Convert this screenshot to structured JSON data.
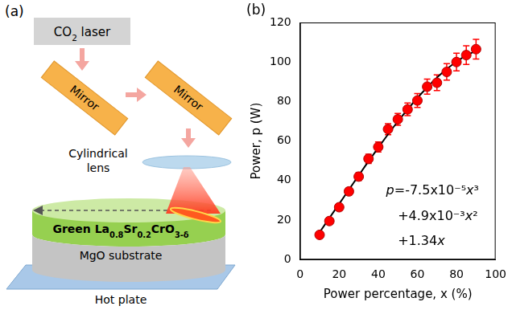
{
  "diagram": {
    "panel_label": "(a)",
    "source": "CO2 laser",
    "mirrors": [
      "Mirror",
      "Mirror"
    ],
    "lens": "Cylindrical lens",
    "film": "Green La0.8Sr0.2CrO3-δ",
    "substrate": "MgO substrate",
    "base": "Hot plate"
  },
  "chart_data": {
    "type": "scatter",
    "panel_label": "(b)",
    "x_label": "Power percentage, x (%)",
    "y_label": "Power, p (W)",
    "annotation": [
      "p=-7.5x10⁻⁵x³",
      "+4.9x10⁻³x²",
      "+1.34x"
    ],
    "xlim": [
      0,
      100
    ],
    "xticks": [
      0,
      20,
      40,
      60,
      80,
      100
    ],
    "ylim": [
      0,
      120
    ],
    "yticks": [
      0,
      20,
      40,
      60,
      80,
      100,
      120
    ],
    "grid": false,
    "series": [
      {
        "type": "scatter",
        "color": "#ff0000",
        "marker": "circle",
        "x": [
          10,
          15,
          20,
          25,
          30,
          35,
          40,
          45,
          50,
          55,
          60,
          65,
          70,
          75,
          80,
          85,
          90
        ],
        "values": [
          12.5,
          19.5,
          26.5,
          34.5,
          42,
          51,
          57,
          66,
          71,
          76,
          80.5,
          87.5,
          89.5,
          95,
          100,
          103.5,
          106.5
        ],
        "errors": [
          1,
          1.2,
          1.5,
          1.8,
          2,
          2.3,
          2.5,
          2.8,
          3,
          3.2,
          3.5,
          3.8,
          4,
          4.2,
          4.5,
          4.7,
          5
        ]
      },
      {
        "type": "line",
        "color": "#000000",
        "line_style": "solid",
        "x": [
          10,
          15,
          20,
          25,
          30,
          35,
          40,
          45,
          50,
          55,
          60,
          65,
          70,
          75,
          80,
          85,
          90
        ],
        "values": [
          13.8,
          21,
          28.2,
          35.4,
          42.6,
          49.7,
          56.6,
          63.4,
          69.9,
          76,
          81.8,
          87.2,
          92.1,
          96.4,
          100.2,
          103.3,
          105.6
        ]
      }
    ]
  }
}
